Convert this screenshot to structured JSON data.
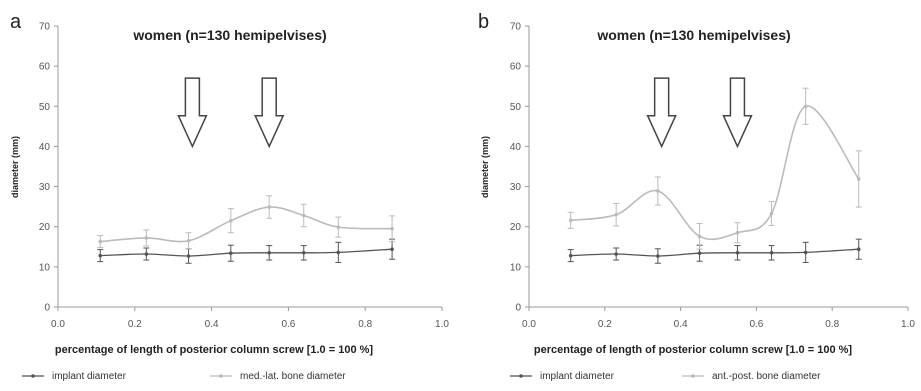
{
  "chart_data": [
    {
      "type": "line",
      "panel_label": "a",
      "title": "women (n=130 hemipelvises)",
      "xlabel": "percentage of length of posterior  column screw [1.0 = 100 %]",
      "ylabel": "diameter (mm)",
      "xlim": [
        0.0,
        1.0
      ],
      "ylim": [
        0,
        70
      ],
      "x_ticks": [
        "0.0",
        "0.2",
        "0.4",
        "0.6",
        "0.8",
        "1.0"
      ],
      "y_ticks": [
        "0",
        "10",
        "20",
        "30",
        "40",
        "50",
        "60",
        "70"
      ],
      "grid": false,
      "legend_position": "bottom",
      "x": [
        0.11,
        0.23,
        0.34,
        0.45,
        0.55,
        0.64,
        0.73,
        0.87
      ],
      "series": [
        {
          "name": "implant diameter",
          "color": "#555555",
          "values": [
            12.8,
            13.2,
            12.7,
            13.4,
            13.5,
            13.5,
            13.6,
            14.4
          ],
          "errors": [
            1.5,
            1.5,
            1.8,
            2.0,
            1.8,
            1.8,
            2.5,
            2.5
          ]
        },
        {
          "name": "med.-lat. bone diameter",
          "color": "#bbbbbb",
          "values": [
            16.3,
            17.2,
            16.5,
            21.5,
            24.9,
            22.8,
            19.9,
            19.5
          ],
          "errors": [
            1.5,
            2.0,
            2.0,
            3.0,
            2.8,
            2.8,
            2.5,
            3.2
          ]
        }
      ],
      "arrows_at_x": [
        0.35,
        0.55
      ],
      "arrow_y_range": [
        40,
        57
      ]
    },
    {
      "type": "line",
      "panel_label": "b",
      "title": "women (n=130 hemipelvises)",
      "xlabel": "percentage of length of posterior  column screw [1.0 = 100 %]",
      "ylabel": "diameter (mm)",
      "xlim": [
        0.0,
        1.0
      ],
      "ylim": [
        0,
        70
      ],
      "x_ticks": [
        "0.0",
        "0.2",
        "0.4",
        "0.6",
        "0.8",
        "1.0"
      ],
      "y_ticks": [
        "0",
        "10",
        "20",
        "30",
        "40",
        "50",
        "60",
        "70"
      ],
      "grid": false,
      "legend_position": "bottom",
      "x": [
        0.11,
        0.23,
        0.34,
        0.45,
        0.55,
        0.64,
        0.73,
        0.87
      ],
      "series": [
        {
          "name": "implant diameter",
          "color": "#555555",
          "values": [
            12.8,
            13.2,
            12.7,
            13.4,
            13.5,
            13.5,
            13.6,
            14.4
          ],
          "errors": [
            1.5,
            1.5,
            1.8,
            2.0,
            1.8,
            1.8,
            2.5,
            2.5
          ]
        },
        {
          "name": "ant.-post. bone diameter",
          "color": "#bbbbbb",
          "values": [
            21.6,
            23.0,
            28.9,
            17.6,
            18.5,
            23.3,
            50.0,
            31.9
          ],
          "errors": [
            2.0,
            2.8,
            3.5,
            3.2,
            2.5,
            3.0,
            4.5,
            7.0
          ]
        }
      ],
      "arrows_at_x": [
        0.35,
        0.55
      ],
      "arrow_y_range": [
        40,
        57
      ]
    }
  ]
}
